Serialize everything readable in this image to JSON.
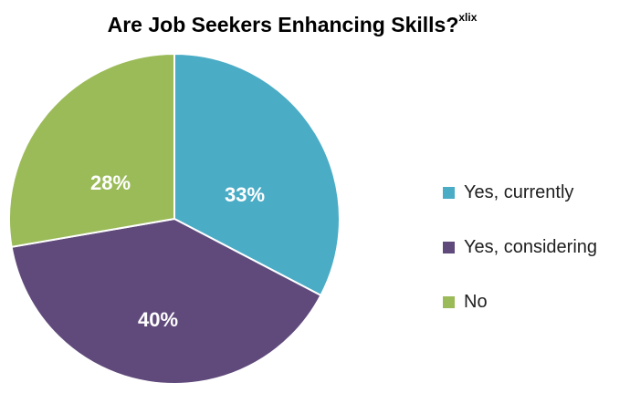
{
  "chart_data": {
    "type": "pie",
    "title": "Are Job Seekers Enhancing Skills?",
    "title_superscript": "xlix",
    "series": [
      {
        "name": "Yes, currently",
        "value": 33,
        "label": "33%",
        "color": "#4bacc6"
      },
      {
        "name": "Yes, considering",
        "value": 40,
        "label": "40%",
        "color": "#604a7b"
      },
      {
        "name": "No",
        "value": 28,
        "label": "28%",
        "color": "#9bbb59"
      }
    ],
    "legend_position": "right"
  }
}
